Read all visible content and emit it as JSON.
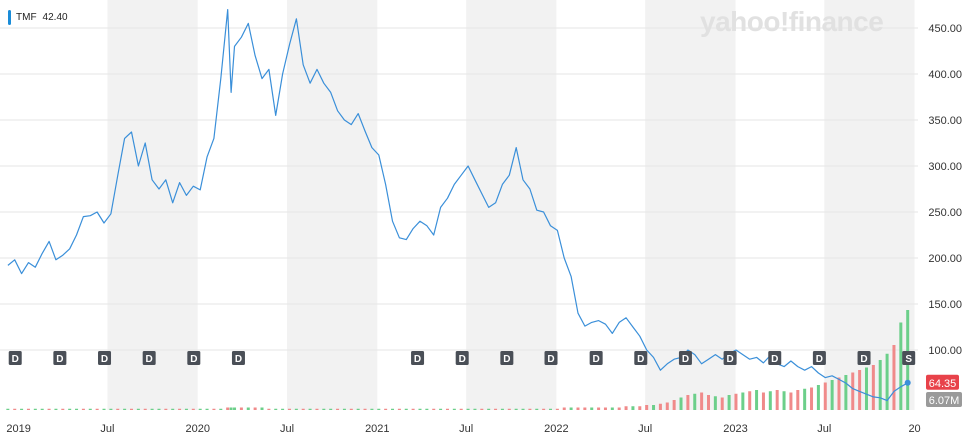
{
  "legend": {
    "symbol": "TMF",
    "value": "42.40"
  },
  "watermark": "yahoo!finance",
  "colors": {
    "line": "#3a8fd9",
    "volume_up": "#6ccf8a",
    "volume_down": "#f08a8a",
    "band": "#f2f2f2",
    "grid": "#e6e6e6",
    "price_badge": "#e8424a",
    "volume_badge": "#9a9a9a",
    "marker": "#4a4f57"
  },
  "badges": {
    "price": "64.35",
    "volume": "6.07M"
  },
  "chart_data": {
    "type": "line",
    "series": [
      {
        "name": "TMF",
        "x": [
          "2018-12-10",
          "2018-12-24",
          "2019-01-07",
          "2019-01-21",
          "2019-02-04",
          "2019-02-18",
          "2019-03-04",
          "2019-03-18",
          "2019-04-01",
          "2019-04-15",
          "2019-04-29",
          "2019-05-13",
          "2019-05-27",
          "2019-06-10",
          "2019-06-24",
          "2019-07-08",
          "2019-07-22",
          "2019-08-05",
          "2019-08-19",
          "2019-09-02",
          "2019-09-16",
          "2019-09-30",
          "2019-10-14",
          "2019-10-28",
          "2019-11-11",
          "2019-11-25",
          "2019-12-09",
          "2019-12-23",
          "2020-01-06",
          "2020-01-20",
          "2020-02-03",
          "2020-02-17",
          "2020-03-02",
          "2020-03-09",
          "2020-03-16",
          "2020-03-30",
          "2020-04-13",
          "2020-04-27",
          "2020-05-11",
          "2020-05-25",
          "2020-06-08",
          "2020-06-22",
          "2020-07-06",
          "2020-07-20",
          "2020-08-03",
          "2020-08-17",
          "2020-08-31",
          "2020-09-14",
          "2020-09-28",
          "2020-10-12",
          "2020-10-26",
          "2020-11-09",
          "2020-11-23",
          "2020-12-07",
          "2020-12-21",
          "2021-01-04",
          "2021-01-18",
          "2021-02-01",
          "2021-02-15",
          "2021-03-01",
          "2021-03-15",
          "2021-03-29",
          "2021-04-12",
          "2021-04-26",
          "2021-05-10",
          "2021-05-24",
          "2021-06-07",
          "2021-06-21",
          "2021-07-05",
          "2021-07-19",
          "2021-08-02",
          "2021-08-16",
          "2021-08-30",
          "2021-09-13",
          "2021-09-27",
          "2021-10-11",
          "2021-10-25",
          "2021-11-08",
          "2021-11-22",
          "2021-12-06",
          "2021-12-20",
          "2022-01-03",
          "2022-01-17",
          "2022-01-31",
          "2022-02-14",
          "2022-02-28",
          "2022-03-14",
          "2022-03-28",
          "2022-04-11",
          "2022-04-25",
          "2022-05-09",
          "2022-05-23",
          "2022-06-06",
          "2022-06-20",
          "2022-07-04",
          "2022-07-18",
          "2022-08-01",
          "2022-08-15",
          "2022-08-29",
          "2022-09-12",
          "2022-09-26",
          "2022-10-10",
          "2022-10-24",
          "2022-11-07",
          "2022-11-21",
          "2022-12-05",
          "2022-12-19",
          "2023-01-02",
          "2023-01-16",
          "2023-01-30",
          "2023-02-13",
          "2023-02-27",
          "2023-03-13",
          "2023-03-27",
          "2023-04-10",
          "2023-04-24",
          "2023-05-08",
          "2023-05-22",
          "2023-06-05",
          "2023-06-19",
          "2023-07-03",
          "2023-07-17",
          "2023-07-31",
          "2023-08-14",
          "2023-08-28",
          "2023-09-11",
          "2023-09-25",
          "2023-10-09",
          "2023-10-23",
          "2023-11-06",
          "2023-11-20",
          "2023-12-04",
          "2023-12-18"
        ],
        "values": [
          192,
          198,
          183,
          195,
          190,
          205,
          218,
          198,
          203,
          210,
          225,
          245,
          246,
          250,
          238,
          248,
          290,
          330,
          337,
          300,
          325,
          285,
          275,
          285,
          260,
          282,
          268,
          278,
          274,
          310,
          330,
          395,
          470,
          380,
          430,
          440,
          455,
          420,
          395,
          405,
          355,
          400,
          432,
          460,
          410,
          390,
          405,
          390,
          380,
          360,
          350,
          345,
          357,
          338,
          320,
          312,
          280,
          240,
          222,
          220,
          232,
          240,
          235,
          225,
          255,
          265,
          280,
          290,
          300,
          285,
          270,
          255,
          260,
          280,
          290,
          320,
          285,
          275,
          252,
          250,
          235,
          230,
          200,
          180,
          140,
          126,
          130,
          132,
          128,
          118,
          130,
          135,
          125,
          115,
          100,
          92,
          78,
          85,
          90,
          92,
          100,
          95,
          85,
          90,
          95,
          90,
          96,
          100,
          95,
          90,
          92,
          86,
          94,
          85,
          82,
          88,
          82,
          78,
          82,
          75,
          70,
          72,
          68,
          64,
          58,
          55,
          52,
          49,
          48,
          45,
          55,
          60,
          64.35
        ]
      }
    ],
    "volume": {
      "values": [
        1,
        1,
        1,
        1,
        1,
        1,
        1,
        1,
        1,
        1,
        1,
        1,
        1,
        1,
        1,
        1,
        1,
        1,
        1,
        1,
        1,
        1,
        1,
        1,
        1,
        1,
        1,
        1,
        1,
        1,
        1,
        1,
        2,
        2,
        2,
        2,
        2,
        2,
        2,
        1,
        1,
        1,
        1,
        1,
        1,
        1,
        1,
        1,
        1,
        1,
        1,
        1,
        1,
        1,
        1,
        1,
        1,
        1,
        1,
        1,
        1,
        1,
        1,
        1,
        1,
        1,
        1,
        1,
        1,
        1,
        1,
        1,
        1,
        1,
        1,
        1,
        1,
        1,
        1,
        1,
        1,
        1,
        2,
        2,
        2,
        2,
        2,
        2,
        2,
        2,
        2,
        3,
        3,
        3,
        4,
        4,
        5,
        6,
        8,
        10,
        12,
        13,
        14,
        12,
        11,
        10,
        12,
        13,
        14,
        15,
        16,
        14,
        15,
        16,
        15,
        14,
        16,
        17,
        18,
        20,
        22,
        24,
        26,
        28,
        30,
        32,
        34,
        36,
        40,
        45,
        52,
        70,
        80
      ],
      "direction": [
        "u",
        "d",
        "u",
        "d",
        "u",
        "u",
        "d",
        "u",
        "d",
        "u",
        "u",
        "d",
        "u",
        "d",
        "u",
        "u",
        "d",
        "u",
        "d",
        "u",
        "d",
        "u",
        "u",
        "d",
        "u",
        "d",
        "u",
        "d",
        "u",
        "u",
        "d",
        "u",
        "d",
        "u",
        "u",
        "d",
        "u",
        "d",
        "u",
        "d",
        "u",
        "u",
        "d",
        "u",
        "d",
        "u",
        "d",
        "u",
        "u",
        "d",
        "u",
        "d",
        "u",
        "d",
        "u",
        "u",
        "d",
        "u",
        "d",
        "u",
        "d",
        "u",
        "u",
        "d",
        "u",
        "d",
        "u",
        "d",
        "u",
        "u",
        "d",
        "u",
        "d",
        "u",
        "d",
        "u",
        "u",
        "d",
        "u",
        "d",
        "u",
        "d",
        "d",
        "u",
        "d",
        "d",
        "u",
        "d",
        "d",
        "u",
        "d",
        "d",
        "u",
        "d",
        "d",
        "u",
        "d",
        "d",
        "d",
        "u",
        "d",
        "u",
        "d",
        "d",
        "u",
        "d",
        "u",
        "d",
        "u",
        "d",
        "u",
        "d",
        "u",
        "d",
        "u",
        "d",
        "d",
        "u",
        "d",
        "u",
        "d",
        "u",
        "d",
        "u",
        "d",
        "d",
        "u",
        "d",
        "u",
        "u",
        "d",
        "u",
        "u"
      ]
    },
    "dividends": {
      "dates": [
        "2018-12-24",
        "2019-03-25",
        "2019-06-24",
        "2019-09-23",
        "2019-12-23",
        "2020-03-23",
        "2021-03-23",
        "2021-06-22",
        "2021-09-21",
        "2021-12-20",
        "2022-03-22",
        "2022-06-21",
        "2022-09-20",
        "2022-12-20",
        "2023-03-21",
        "2023-06-20",
        "2023-09-19",
        "2023-12-19"
      ],
      "labels": [
        "D",
        "D",
        "D",
        "D",
        "D",
        "D",
        "D",
        "D",
        "D",
        "D",
        "D",
        "D",
        "D",
        "D",
        "D",
        "D",
        "D",
        "S"
      ]
    },
    "x_ticks": [
      "2019",
      "Jul",
      "2020",
      "Jul",
      "2021",
      "Jul",
      "2022",
      "Jul",
      "2023",
      "Jul",
      "20"
    ],
    "y_ticks": [
      "100.00",
      "150.00",
      "200.00",
      "250.00",
      "300.00",
      "350.00",
      "400.00",
      "450.00"
    ],
    "ylim": [
      40,
      480
    ],
    "grid": true,
    "legend_position": "top-left"
  }
}
